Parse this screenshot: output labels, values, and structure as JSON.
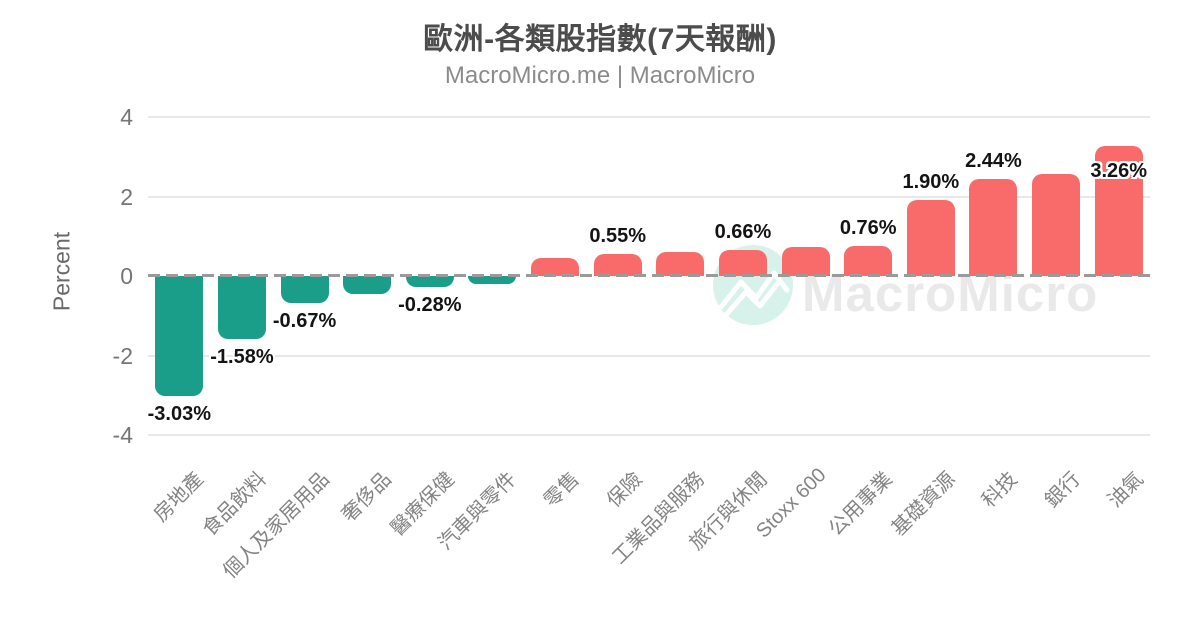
{
  "watermark": {
    "text": "MacroMicro",
    "circle_color": "#d7f2eb",
    "logo_line_color": "#ffffff",
    "text_color": "#e9e9e9"
  },
  "chart_data": {
    "type": "bar",
    "title": "歐洲-各類股指數(7天報酬)",
    "subtitle": "MacroMicro.me | MacroMicro",
    "xlabel": "",
    "ylabel": "Percent",
    "ylim": [
      -4,
      4
    ],
    "yticks": [
      4,
      2,
      0,
      -2,
      -4
    ],
    "grid": true,
    "zero_line_style": "dashed",
    "legend": "none",
    "categories": [
      "房地產",
      "食品飲料",
      "個人及家居用品",
      "奢侈品",
      "醫療保健",
      "汽車與零件",
      "零售",
      "保險",
      "工業品與服務",
      "旅行與休閒",
      "Stoxx 600",
      "公用事業",
      "基礎資源",
      "科技",
      "銀行",
      "油氣"
    ],
    "values": [
      -3.03,
      -1.58,
      -0.67,
      -0.45,
      -0.28,
      -0.2,
      0.45,
      0.55,
      0.6,
      0.66,
      0.72,
      0.76,
      1.9,
      2.44,
      2.56,
      3.26
    ],
    "data_labels": [
      "-3.03%",
      "-1.58%",
      "-0.67%",
      null,
      "-0.28%",
      null,
      null,
      "0.55%",
      null,
      "0.66%",
      null,
      "0.76%",
      "1.90%",
      "2.44%",
      null,
      "3.26%"
    ],
    "colors": {
      "positive": "#f96b6b",
      "negative": "#1b9e89"
    }
  }
}
